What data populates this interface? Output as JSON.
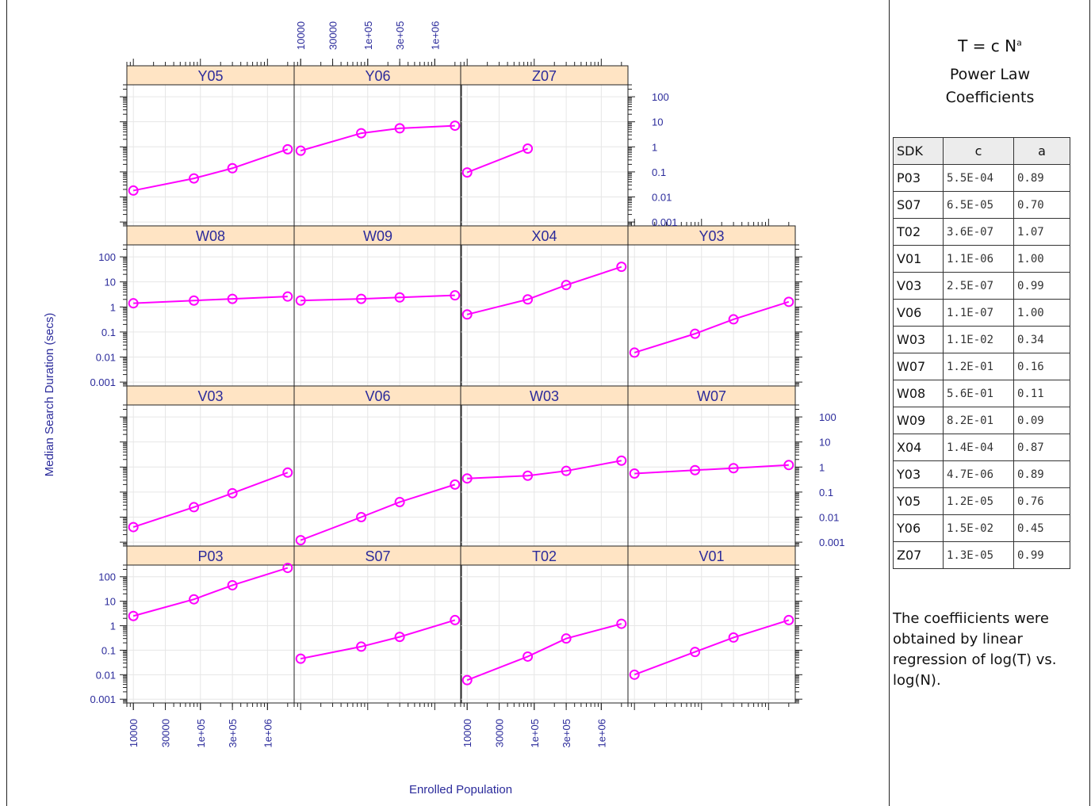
{
  "chart_data": {
    "type": "line",
    "xlabel": "Enrolled Population",
    "ylabel": "Median Search Duration (secs)",
    "x_scale": "log",
    "y_scale": "log",
    "xlim": [
      8000,
      2500000
    ],
    "ylim": [
      0.0007,
      300
    ],
    "x_ticks": [
      "10000",
      "30000",
      "1e+05",
      "3e+05",
      "1e+06"
    ],
    "y_ticks": [
      "100",
      "10",
      "1",
      "0.1",
      "0.01",
      "0.001"
    ],
    "strip_color": "#ffe4c4",
    "line_color": "#ff00ff",
    "axis_text_color": "#2b2b9b",
    "panels": [
      {
        "name": "P03",
        "x": [
          10000,
          80000,
          300000,
          2000000
        ],
        "y": [
          2.5,
          12,
          45,
          230
        ]
      },
      {
        "name": "S07",
        "x": [
          10000,
          80000,
          300000,
          2000000
        ],
        "y": [
          0.045,
          0.14,
          0.35,
          1.7
        ]
      },
      {
        "name": "T02",
        "x": [
          10000,
          80000,
          300000,
          2000000
        ],
        "y": [
          0.006,
          0.055,
          0.3,
          1.2
        ]
      },
      {
        "name": "V01",
        "x": [
          10000,
          80000,
          300000,
          2000000
        ],
        "y": [
          0.01,
          0.085,
          0.33,
          1.7
        ]
      },
      {
        "name": "V03",
        "x": [
          10000,
          80000,
          300000,
          2000000
        ],
        "y": [
          0.004,
          0.025,
          0.09,
          0.6
        ]
      },
      {
        "name": "V06",
        "x": [
          10000,
          80000,
          300000,
          2000000
        ],
        "y": [
          0.0012,
          0.01,
          0.04,
          0.2
        ]
      },
      {
        "name": "W03",
        "x": [
          10000,
          80000,
          300000,
          2000000
        ],
        "y": [
          0.35,
          0.45,
          0.7,
          1.8
        ]
      },
      {
        "name": "W07",
        "x": [
          10000,
          80000,
          300000,
          2000000
        ],
        "y": [
          0.55,
          0.75,
          0.9,
          1.2
        ]
      },
      {
        "name": "W08",
        "x": [
          10000,
          80000,
          300000,
          2000000
        ],
        "y": [
          1.4,
          1.8,
          2.1,
          2.6
        ]
      },
      {
        "name": "W09",
        "x": [
          10000,
          80000,
          300000,
          2000000
        ],
        "y": [
          1.8,
          2.1,
          2.4,
          2.9
        ]
      },
      {
        "name": "X04",
        "x": [
          10000,
          80000,
          300000,
          2000000
        ],
        "y": [
          0.5,
          2,
          7.5,
          40
        ]
      },
      {
        "name": "Y03",
        "x": [
          10000,
          80000,
          300000,
          2000000
        ],
        "y": [
          0.015,
          0.085,
          0.32,
          1.6
        ]
      },
      {
        "name": "Y05",
        "x": [
          10000,
          80000,
          300000,
          2000000
        ],
        "y": [
          0.018,
          0.055,
          0.14,
          0.8
        ]
      },
      {
        "name": "Y06",
        "x": [
          10000,
          80000,
          300000,
          2000000
        ],
        "y": [
          0.7,
          3.5,
          5.5,
          7
        ]
      },
      {
        "name": "Z07",
        "x": [
          10000,
          80000
        ],
        "y": [
          0.095,
          0.85
        ]
      }
    ]
  },
  "side_panel": {
    "formula_main": "T = c N",
    "formula_exp": "a",
    "subtitle_line1": "Power Law",
    "subtitle_line2": "Coefficients",
    "table": {
      "headers": [
        "SDK",
        "c",
        "a"
      ],
      "rows": [
        [
          "P03",
          "5.5E-04",
          "0.89"
        ],
        [
          "S07",
          "6.5E-05",
          "0.70"
        ],
        [
          "T02",
          "3.6E-07",
          "1.07"
        ],
        [
          "V01",
          "1.1E-06",
          "1.00"
        ],
        [
          "V03",
          "2.5E-07",
          "0.99"
        ],
        [
          "V06",
          "1.1E-07",
          "1.00"
        ],
        [
          "W03",
          "1.1E-02",
          "0.34"
        ],
        [
          "W07",
          "1.2E-01",
          "0.16"
        ],
        [
          "W08",
          "5.6E-01",
          "0.11"
        ],
        [
          "W09",
          "8.2E-01",
          "0.09"
        ],
        [
          "X04",
          "1.4E-04",
          "0.87"
        ],
        [
          "Y03",
          "4.7E-06",
          "0.89"
        ],
        [
          "Y05",
          "1.2E-05",
          "0.76"
        ],
        [
          "Y06",
          "1.5E-02",
          "0.45"
        ],
        [
          "Z07",
          "1.3E-05",
          "0.99"
        ]
      ]
    },
    "note": "The coeffiicients were obtained by linear regression of log(T) vs. log(N)."
  }
}
